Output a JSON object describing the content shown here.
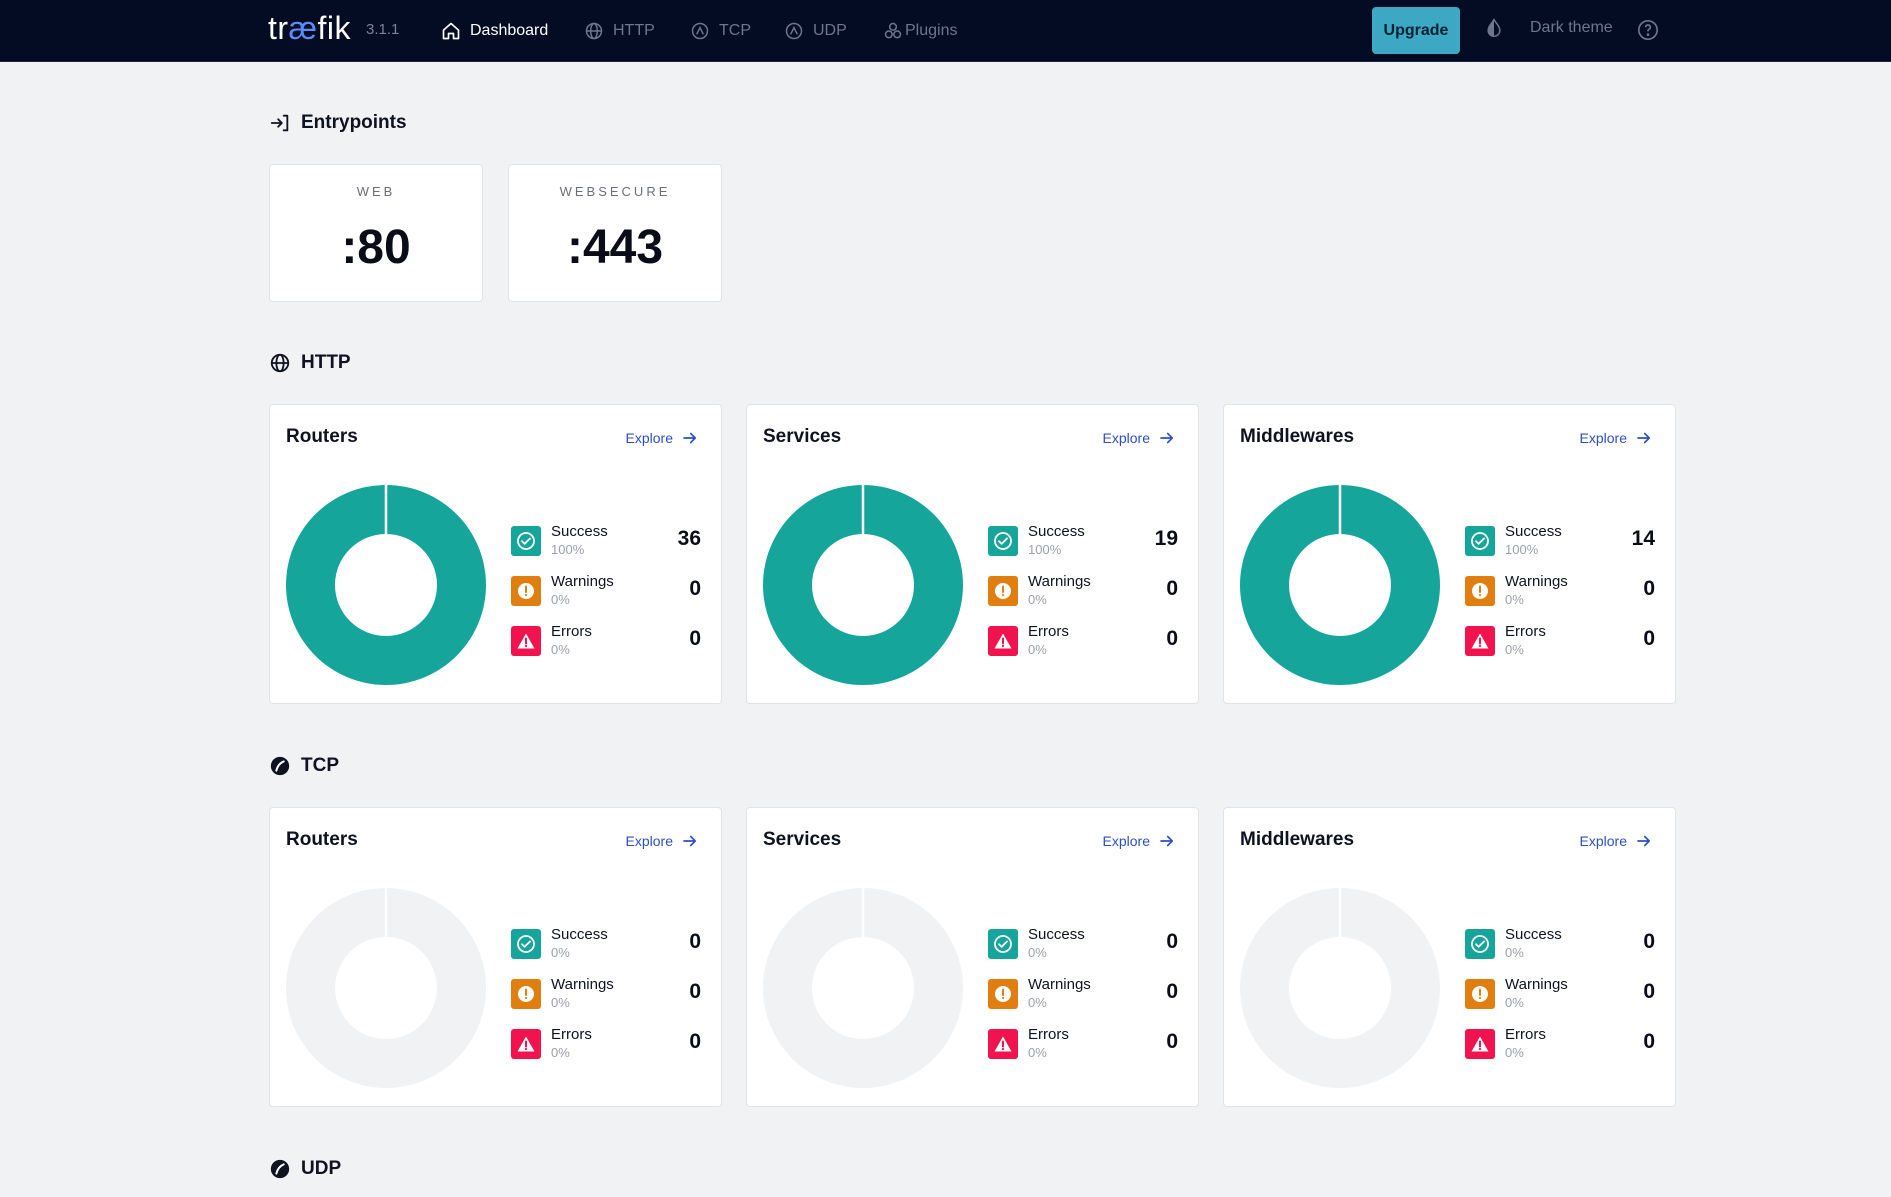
{
  "header": {
    "logo_text": "tr",
    "logo_accent": "æ",
    "logo_suffix": "fik",
    "version": "3.1.1",
    "nav": [
      {
        "label": "Dashboard",
        "icon": "home-icon",
        "active": true
      },
      {
        "label": "HTTP",
        "icon": "globe-icon",
        "active": false
      },
      {
        "label": "TCP",
        "icon": "tcp-icon",
        "active": false
      },
      {
        "label": "UDP",
        "icon": "udp-icon",
        "active": false
      },
      {
        "label": "Plugins",
        "icon": "plugins-icon",
        "active": false
      }
    ],
    "upgrade_label": "Upgrade",
    "theme_label": "Dark theme"
  },
  "entrypoints": {
    "title": "Entrypoints",
    "items": [
      {
        "name": "WEB",
        "port": ":80"
      },
      {
        "name": "WEBSECURE",
        "port": ":443"
      }
    ]
  },
  "sections": [
    {
      "title": "HTTP",
      "cards": [
        {
          "title": "Routers",
          "explore": "Explore",
          "stats": [
            {
              "label": "Success",
              "pct": "100%",
              "count": "36"
            },
            {
              "label": "Warnings",
              "pct": "0%",
              "count": "0"
            },
            {
              "label": "Errors",
              "pct": "0%",
              "count": "0"
            }
          ]
        },
        {
          "title": "Services",
          "explore": "Explore",
          "stats": [
            {
              "label": "Success",
              "pct": "100%",
              "count": "19"
            },
            {
              "label": "Warnings",
              "pct": "0%",
              "count": "0"
            },
            {
              "label": "Errors",
              "pct": "0%",
              "count": "0"
            }
          ]
        },
        {
          "title": "Middlewares",
          "explore": "Explore",
          "stats": [
            {
              "label": "Success",
              "pct": "100%",
              "count": "14"
            },
            {
              "label": "Warnings",
              "pct": "0%",
              "count": "0"
            },
            {
              "label": "Errors",
              "pct": "0%",
              "count": "0"
            }
          ]
        }
      ]
    },
    {
      "title": "TCP",
      "cards": [
        {
          "title": "Routers",
          "explore": "Explore",
          "stats": [
            {
              "label": "Success",
              "pct": "0%",
              "count": "0"
            },
            {
              "label": "Warnings",
              "pct": "0%",
              "count": "0"
            },
            {
              "label": "Errors",
              "pct": "0%",
              "count": "0"
            }
          ]
        },
        {
          "title": "Services",
          "explore": "Explore",
          "stats": [
            {
              "label": "Success",
              "pct": "0%",
              "count": "0"
            },
            {
              "label": "Warnings",
              "pct": "0%",
              "count": "0"
            },
            {
              "label": "Errors",
              "pct": "0%",
              "count": "0"
            }
          ]
        },
        {
          "title": "Middlewares",
          "explore": "Explore",
          "stats": [
            {
              "label": "Success",
              "pct": "0%",
              "count": "0"
            },
            {
              "label": "Warnings",
              "pct": "0%",
              "count": "0"
            },
            {
              "label": "Errors",
              "pct": "0%",
              "count": "0"
            }
          ]
        }
      ]
    },
    {
      "title": "UDP",
      "cards": []
    }
  ],
  "colors": {
    "success": "#16a59a",
    "warning": "#e07f10",
    "error": "#f0134d",
    "empty": "#f1f2f4",
    "accent": "#3da8c4"
  }
}
